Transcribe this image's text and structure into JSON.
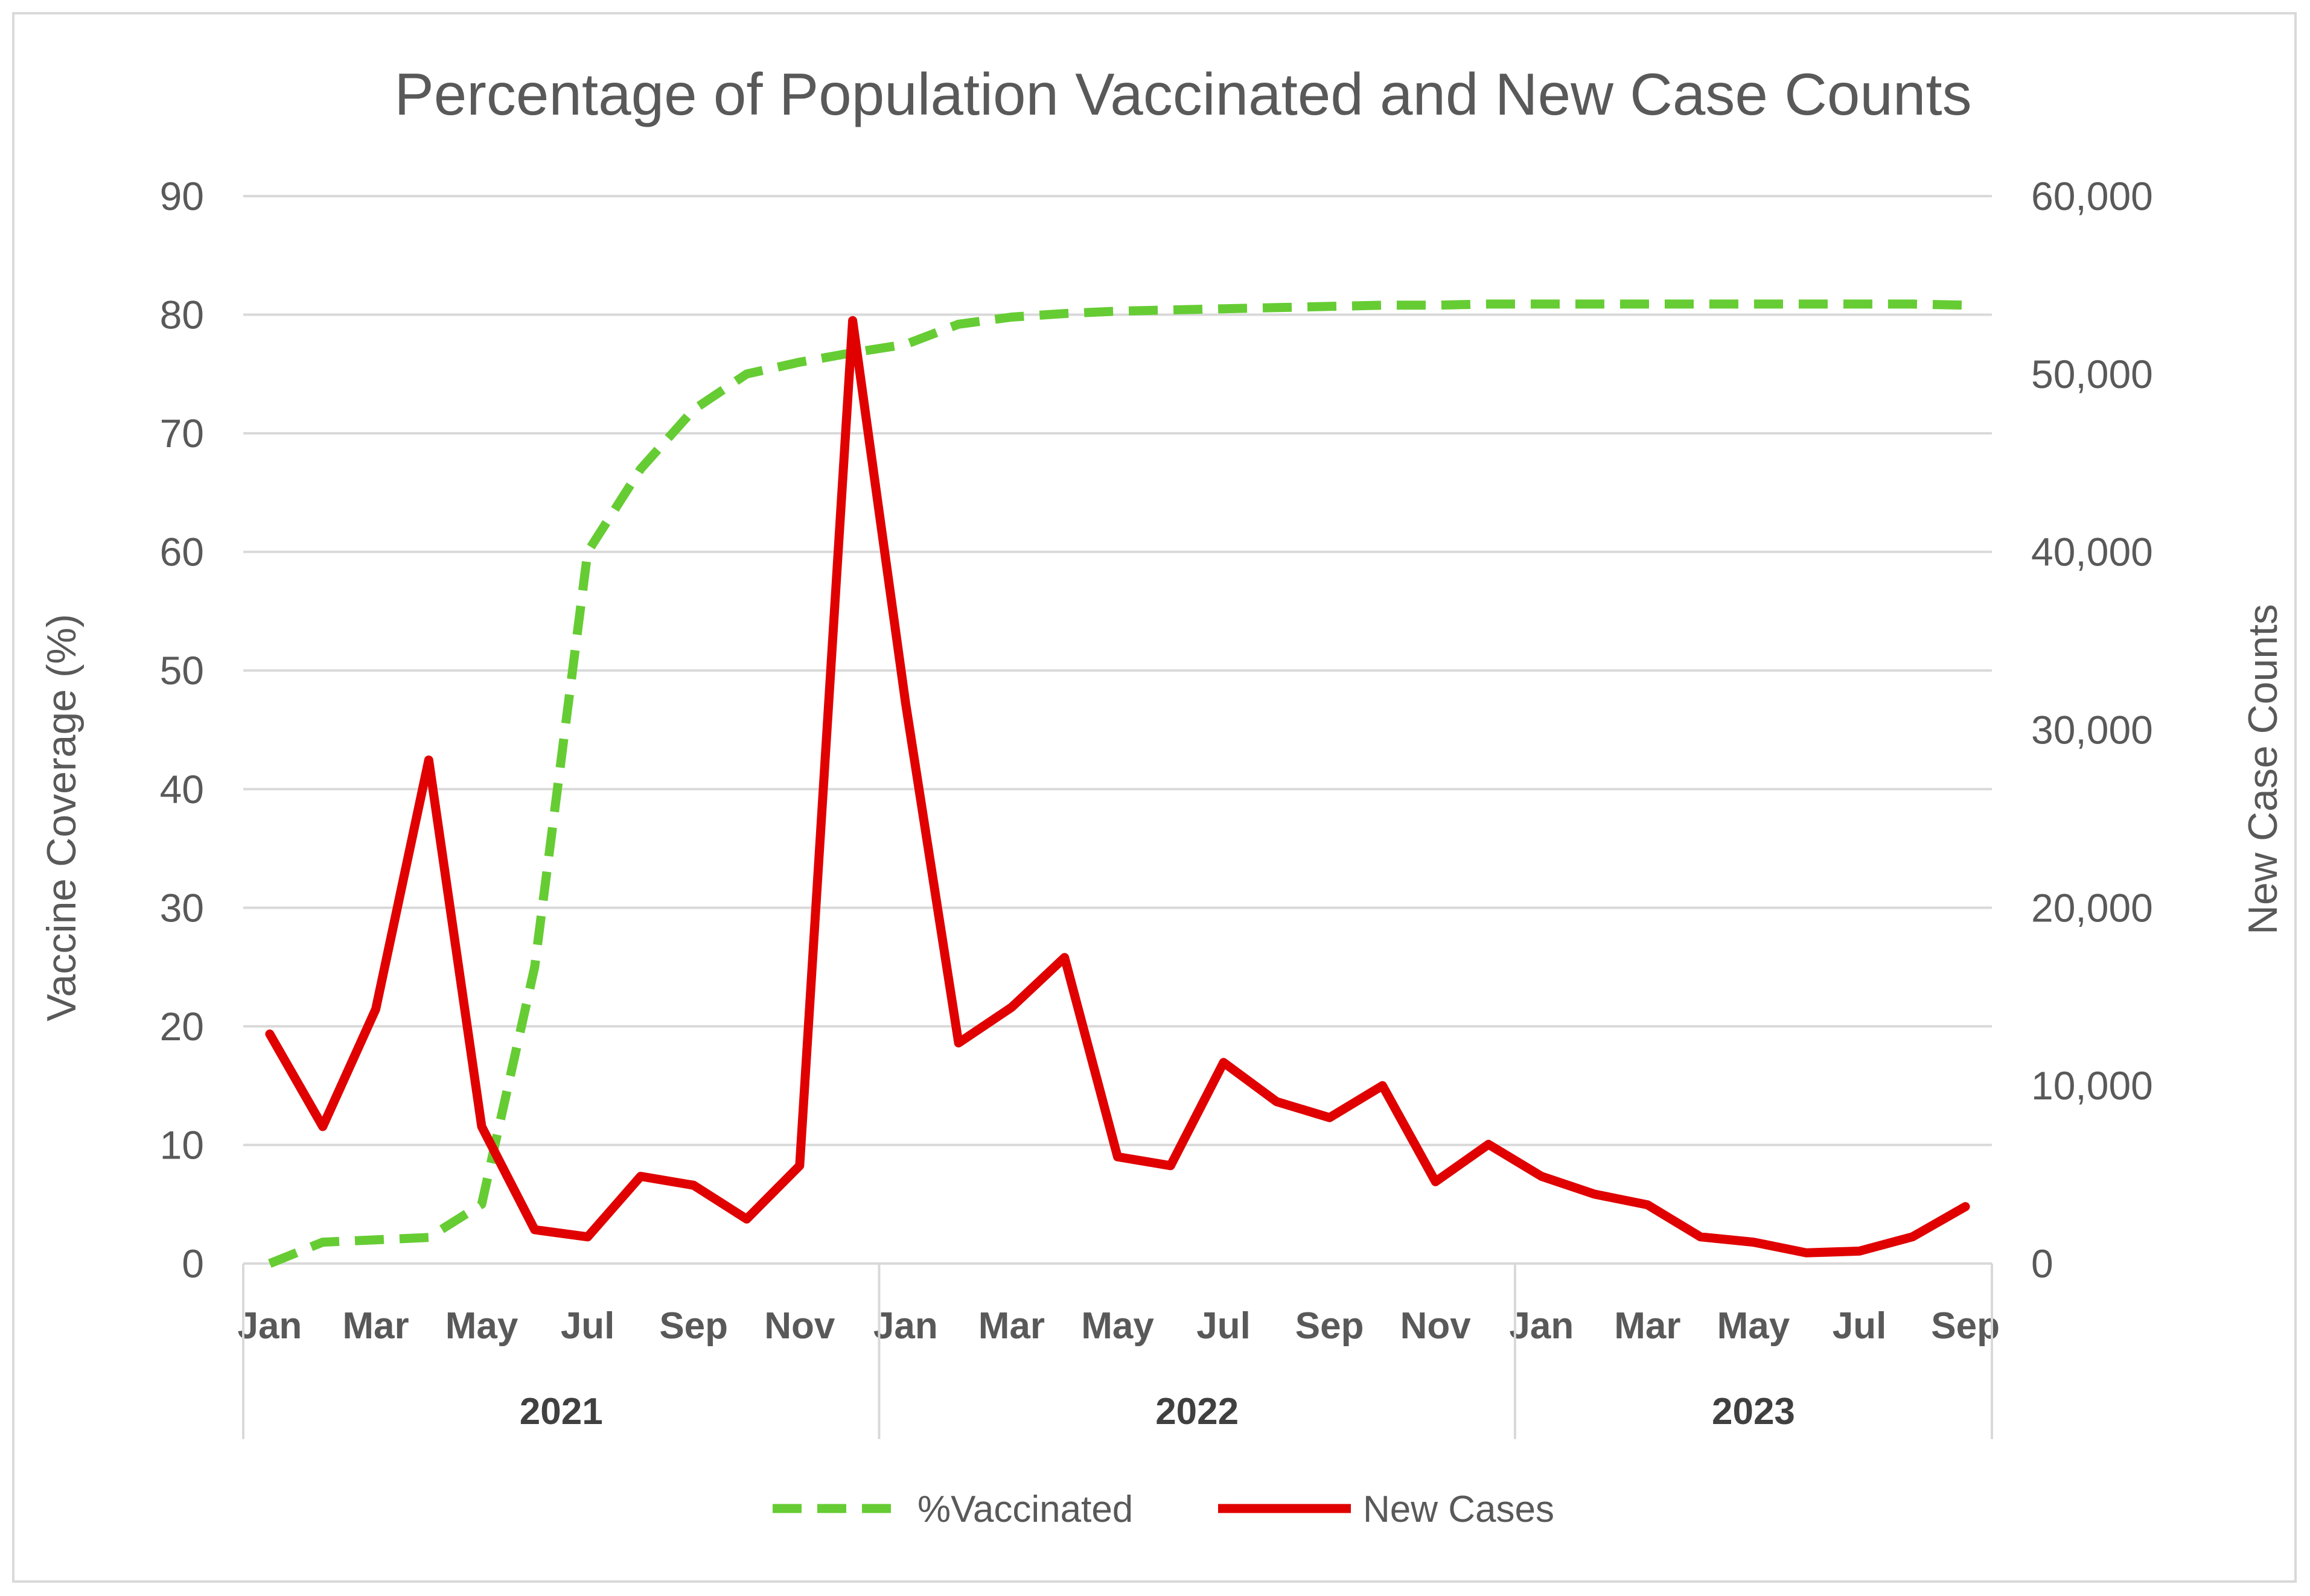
{
  "chart_data": {
    "type": "line",
    "title": "Percentage of Population Vaccinated and New Case Counts",
    "ylabel": "Vaccine Coverage (%)",
    "y2label": "New Case Counts",
    "ylim": [
      0,
      90
    ],
    "y2lim": [
      0,
      60000
    ],
    "y_ticks": [
      "0",
      "10",
      "20",
      "30",
      "40",
      "50",
      "60",
      "70",
      "80",
      "90"
    ],
    "y2_ticks": [
      "0",
      "10,000",
      "20,000",
      "30,000",
      "40,000",
      "50,000",
      "60,000"
    ],
    "grid": true,
    "legend_position": "bottom",
    "x": [
      "2021-01",
      "2021-02",
      "2021-03",
      "2021-04",
      "2021-05",
      "2021-06",
      "2021-07",
      "2021-08",
      "2021-09",
      "2021-10",
      "2021-11",
      "2021-12",
      "2022-01",
      "2022-02",
      "2022-03",
      "2022-04",
      "2022-05",
      "2022-06",
      "2022-07",
      "2022-08",
      "2022-09",
      "2022-10",
      "2022-11",
      "2022-12",
      "2023-01",
      "2023-02",
      "2023-03",
      "2023-04",
      "2023-05",
      "2023-06",
      "2023-07",
      "2023-08",
      "2023-09"
    ],
    "x_tick_labels": [
      "Jan",
      "",
      "Mar",
      "",
      "May",
      "",
      "Jul",
      "",
      "Sep",
      "",
      "Nov",
      "",
      "Jan",
      "",
      "Mar",
      "",
      "May",
      "",
      "Jul",
      "",
      "Sep",
      "",
      "Nov",
      "",
      "Jan",
      "",
      "Mar",
      "",
      "May",
      "",
      "Jul",
      "",
      "Sep"
    ],
    "year_groups": [
      {
        "label": "2021",
        "months": 12
      },
      {
        "label": "2022",
        "months": 12
      },
      {
        "label": "2023",
        "months": 9
      }
    ],
    "series": [
      {
        "name": "%Vaccinated",
        "axis": "left",
        "style": "dashed",
        "color": "#66cc33",
        "values": [
          0,
          1.8,
          2,
          2.2,
          5,
          25,
          60,
          67,
          72,
          75,
          76,
          76.8,
          77.5,
          79.2,
          79.8,
          80.1,
          80.3,
          80.4,
          80.5,
          80.6,
          80.7,
          80.8,
          80.8,
          80.9,
          80.9,
          80.9,
          80.9,
          80.9,
          80.9,
          80.9,
          80.9,
          80.9,
          80.8
        ]
      },
      {
        "name": "New Cases",
        "axis": "right",
        "style": "solid",
        "color": "#e00000",
        "values": [
          12900,
          7700,
          14300,
          28300,
          7700,
          1900,
          1500,
          4900,
          4400,
          2500,
          5500,
          53000,
          31500,
          12400,
          14400,
          17200,
          6000,
          5500,
          11300,
          9100,
          8200,
          10000,
          4600,
          6700,
          4900,
          3900,
          3300,
          1500,
          1200,
          600,
          700,
          1500,
          3200
        ]
      }
    ]
  }
}
